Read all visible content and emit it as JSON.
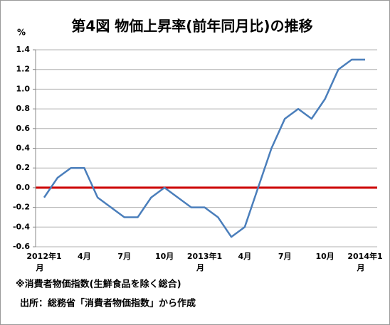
{
  "chart_data": {
    "type": "line",
    "title": "第4図  物価上昇率(前年同月比)の推移",
    "y_unit": "%",
    "categories": [
      "2012年1月",
      null,
      null,
      "4月",
      null,
      null,
      "7月",
      null,
      null,
      "10月",
      null,
      null,
      "2013年1月",
      null,
      null,
      "4月",
      null,
      null,
      "7月",
      null,
      null,
      "10月",
      null,
      null,
      "2014年1月"
    ],
    "series": [
      {
        "name": "消費者物価指数",
        "color": "#4a7ebb",
        "values": [
          -0.1,
          0.1,
          0.2,
          0.2,
          -0.1,
          -0.2,
          -0.3,
          -0.3,
          -0.1,
          0.0,
          -0.1,
          -0.2,
          -0.2,
          -0.3,
          -0.5,
          -0.4,
          0.0,
          0.4,
          0.7,
          0.8,
          0.7,
          0.9,
          1.2,
          1.3,
          1.3
        ]
      }
    ],
    "ylim": [
      -0.6,
      1.4
    ],
    "yticks": [
      -0.6,
      -0.4,
      -0.2,
      {
        "value": 0,
        "label": "0.0"
      },
      0.2,
      0.4,
      0.6,
      0.8,
      {
        "value": 1,
        "label": "1.0"
      },
      1.2,
      1.4
    ],
    "grid": true,
    "zero_line_color": "#cc0000",
    "notes": [
      "※消費者物価指数(生鮮食品を除く総合)",
      "出所：総務省「消費者物価指数」から作成"
    ]
  }
}
